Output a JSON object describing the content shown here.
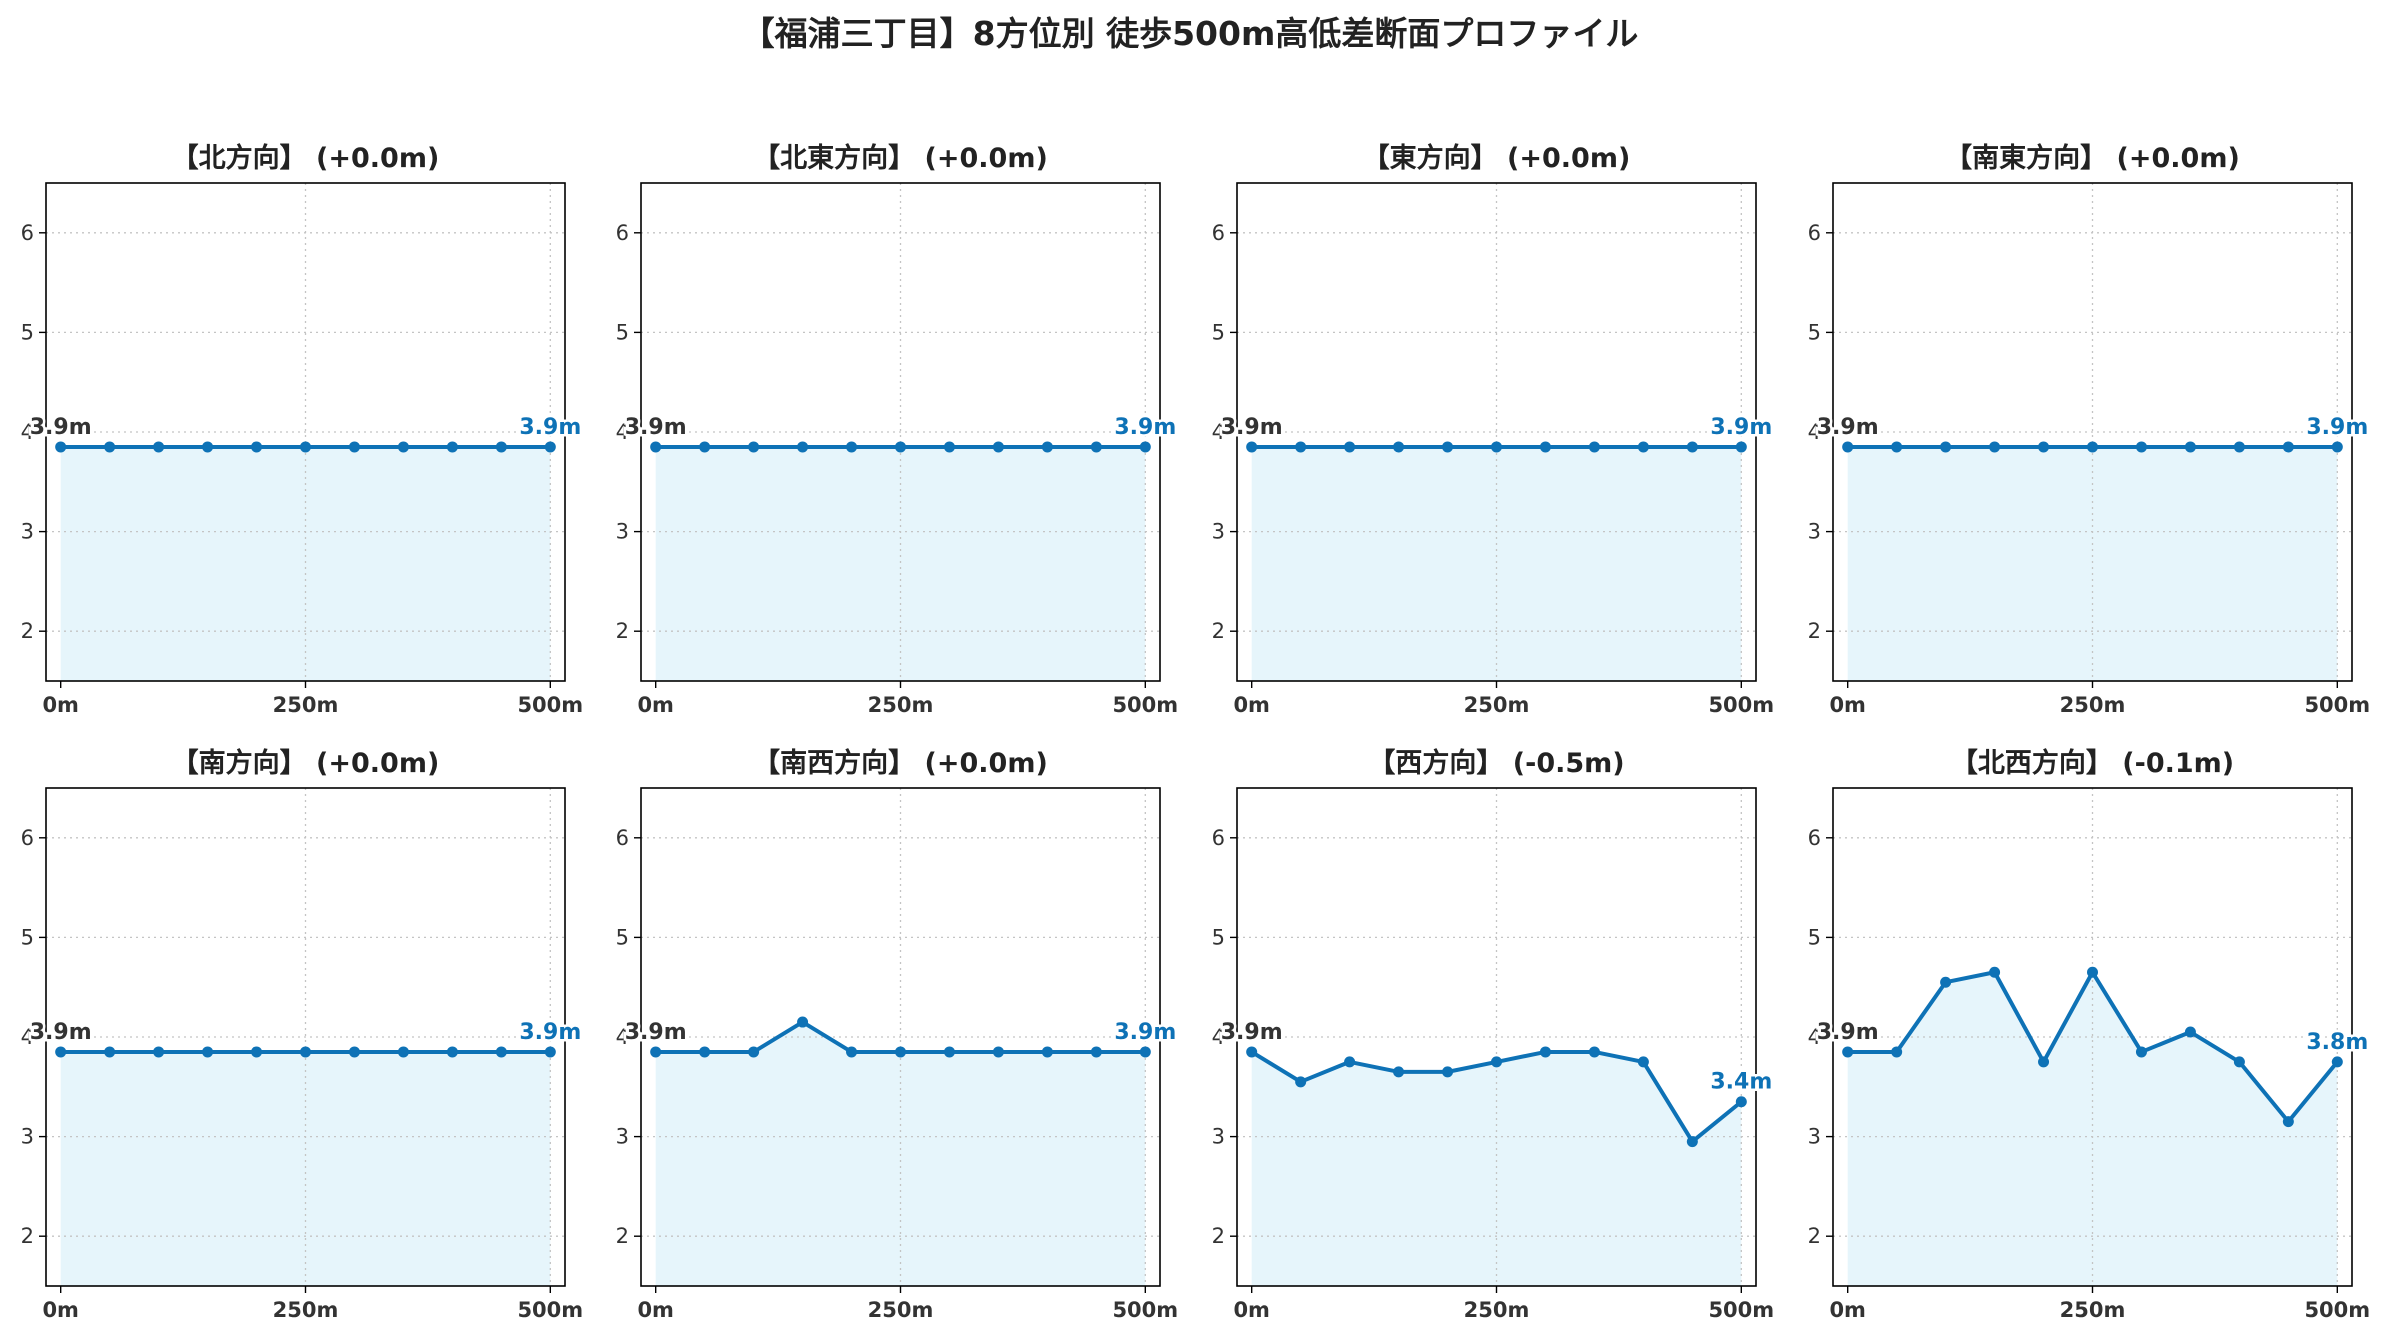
{
  "title": "【福浦三丁目】8方位別 徒歩500m高低差断面プロファイル",
  "chart_data": [
    {
      "type": "line",
      "title": "【北方向】 (+0.0m)",
      "x": [
        0,
        50,
        100,
        150,
        200,
        250,
        300,
        350,
        400,
        450,
        500
      ],
      "values": [
        3.85,
        3.85,
        3.85,
        3.85,
        3.85,
        3.85,
        3.85,
        3.85,
        3.85,
        3.85,
        3.85
      ],
      "start_label": "3.9m",
      "end_label": "3.9m",
      "xticks": [
        "0m",
        "250m",
        "500m"
      ],
      "yticks": [
        "2",
        "3",
        "4",
        "5",
        "6"
      ],
      "ylim": [
        1.5,
        6.5
      ],
      "xlim": [
        -15,
        515
      ],
      "grid": true
    },
    {
      "type": "line",
      "title": "【北東方向】 (+0.0m)",
      "x": [
        0,
        50,
        100,
        150,
        200,
        250,
        300,
        350,
        400,
        450,
        500
      ],
      "values": [
        3.85,
        3.85,
        3.85,
        3.85,
        3.85,
        3.85,
        3.85,
        3.85,
        3.85,
        3.85,
        3.85
      ],
      "start_label": "3.9m",
      "end_label": "3.9m",
      "xticks": [
        "0m",
        "250m",
        "500m"
      ],
      "yticks": [
        "2",
        "3",
        "4",
        "5",
        "6"
      ],
      "ylim": [
        1.5,
        6.5
      ],
      "xlim": [
        -15,
        515
      ],
      "grid": true
    },
    {
      "type": "line",
      "title": "【東方向】 (+0.0m)",
      "x": [
        0,
        50,
        100,
        150,
        200,
        250,
        300,
        350,
        400,
        450,
        500
      ],
      "values": [
        3.85,
        3.85,
        3.85,
        3.85,
        3.85,
        3.85,
        3.85,
        3.85,
        3.85,
        3.85,
        3.85
      ],
      "start_label": "3.9m",
      "end_label": "3.9m",
      "xticks": [
        "0m",
        "250m",
        "500m"
      ],
      "yticks": [
        "2",
        "3",
        "4",
        "5",
        "6"
      ],
      "ylim": [
        1.5,
        6.5
      ],
      "xlim": [
        -15,
        515
      ],
      "grid": true
    },
    {
      "type": "line",
      "title": "【南東方向】 (+0.0m)",
      "x": [
        0,
        50,
        100,
        150,
        200,
        250,
        300,
        350,
        400,
        450,
        500
      ],
      "values": [
        3.85,
        3.85,
        3.85,
        3.85,
        3.85,
        3.85,
        3.85,
        3.85,
        3.85,
        3.85,
        3.85
      ],
      "start_label": "3.9m",
      "end_label": "3.9m",
      "xticks": [
        "0m",
        "250m",
        "500m"
      ],
      "yticks": [
        "2",
        "3",
        "4",
        "5",
        "6"
      ],
      "ylim": [
        1.5,
        6.5
      ],
      "xlim": [
        -15,
        515
      ],
      "grid": true
    },
    {
      "type": "line",
      "title": "【南方向】 (+0.0m)",
      "x": [
        0,
        50,
        100,
        150,
        200,
        250,
        300,
        350,
        400,
        450,
        500
      ],
      "values": [
        3.85,
        3.85,
        3.85,
        3.85,
        3.85,
        3.85,
        3.85,
        3.85,
        3.85,
        3.85,
        3.85
      ],
      "start_label": "3.9m",
      "end_label": "3.9m",
      "xticks": [
        "0m",
        "250m",
        "500m"
      ],
      "yticks": [
        "2",
        "3",
        "4",
        "5",
        "6"
      ],
      "ylim": [
        1.5,
        6.5
      ],
      "xlim": [
        -15,
        515
      ],
      "grid": true
    },
    {
      "type": "line",
      "title": "【南西方向】 (+0.0m)",
      "x": [
        0,
        50,
        100,
        150,
        200,
        250,
        300,
        350,
        400,
        450,
        500
      ],
      "values": [
        3.85,
        3.85,
        3.85,
        4.15,
        3.85,
        3.85,
        3.85,
        3.85,
        3.85,
        3.85,
        3.85
      ],
      "start_label": "3.9m",
      "end_label": "3.9m",
      "xticks": [
        "0m",
        "250m",
        "500m"
      ],
      "yticks": [
        "2",
        "3",
        "4",
        "5",
        "6"
      ],
      "ylim": [
        1.5,
        6.5
      ],
      "xlim": [
        -15,
        515
      ],
      "grid": true
    },
    {
      "type": "line",
      "title": "【西方向】 (-0.5m)",
      "x": [
        0,
        50,
        100,
        150,
        200,
        250,
        300,
        350,
        400,
        450,
        500
      ],
      "values": [
        3.85,
        3.55,
        3.75,
        3.65,
        3.65,
        3.75,
        3.85,
        3.85,
        3.75,
        2.95,
        3.35
      ],
      "start_label": "3.9m",
      "end_label": "3.4m",
      "xticks": [
        "0m",
        "250m",
        "500m"
      ],
      "yticks": [
        "2",
        "3",
        "4",
        "5",
        "6"
      ],
      "ylim": [
        1.5,
        6.5
      ],
      "xlim": [
        -15,
        515
      ],
      "grid": true
    },
    {
      "type": "line",
      "title": "【北西方向】 (-0.1m)",
      "x": [
        0,
        50,
        100,
        150,
        200,
        250,
        300,
        350,
        400,
        450,
        500
      ],
      "values": [
        3.85,
        3.85,
        4.55,
        4.65,
        3.75,
        4.65,
        3.85,
        4.05,
        3.75,
        3.15,
        3.75
      ],
      "start_label": "3.9m",
      "end_label": "3.8m",
      "xticks": [
        "0m",
        "250m",
        "500m"
      ],
      "yticks": [
        "2",
        "3",
        "4",
        "5",
        "6"
      ],
      "ylim": [
        1.5,
        6.5
      ],
      "xlim": [
        -15,
        515
      ],
      "grid": true
    }
  ],
  "colors": {
    "line": "#0e72b6",
    "fill": "#e6f5fb",
    "grid": "#c4c4c4",
    "start_label": "#333333",
    "end_label": "#0e72b6"
  }
}
